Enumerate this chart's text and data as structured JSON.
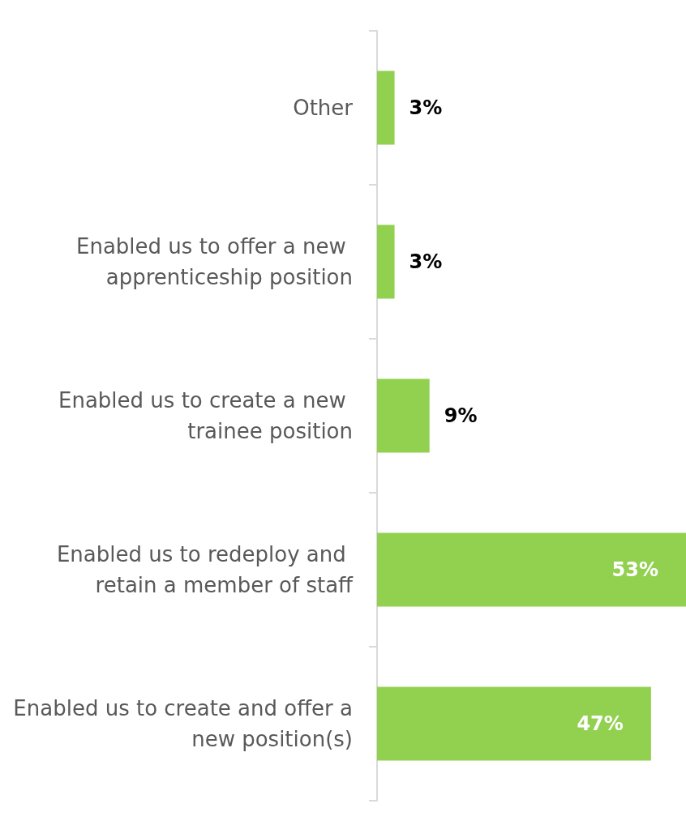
{
  "chart_data": {
    "type": "bar",
    "orientation": "horizontal",
    "categories": [
      "Other",
      "Enabled us to offer a new apprenticeship position",
      "Enabled us to create a new trainee position",
      "Enabled us to redeploy and retain a member of staff",
      "Enabled us to create and offer a new position(s)"
    ],
    "values": [
      3,
      3,
      9,
      53,
      47
    ],
    "value_labels": [
      "3%",
      "3%",
      "9%",
      "53%",
      "47%"
    ],
    "color": "#92d050"
  }
}
